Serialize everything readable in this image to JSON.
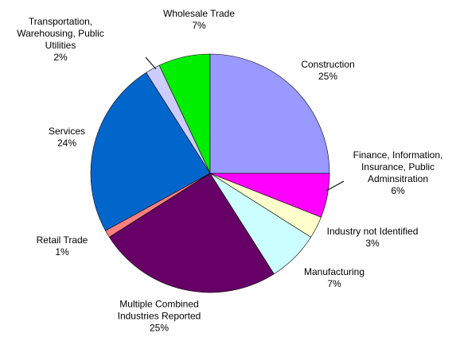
{
  "chart_data": {
    "type": "pie",
    "categories": [
      "Construction",
      "Finance, Information, Insurance, Public Adminsitration",
      "Industry not Identified",
      "Manufacturing",
      "Multiple Combined Industries Reported",
      "Retail Trade",
      "Services",
      "Transportation, Warehousing, Public Utilities",
      "Wholesale Trade"
    ],
    "values": [
      25,
      6,
      3,
      7,
      25,
      1,
      24,
      2,
      7
    ],
    "value_labels": [
      "25%",
      "6%",
      "3%",
      "7%",
      "25%",
      "1%",
      "24%",
      "2%",
      "7%"
    ],
    "colors": [
      "#9999ff",
      "#ff00ff",
      "#ffffcc",
      "#ccffff",
      "#660066",
      "#ff8080",
      "#0066cc",
      "#ccccff",
      "#00ee00"
    ]
  }
}
